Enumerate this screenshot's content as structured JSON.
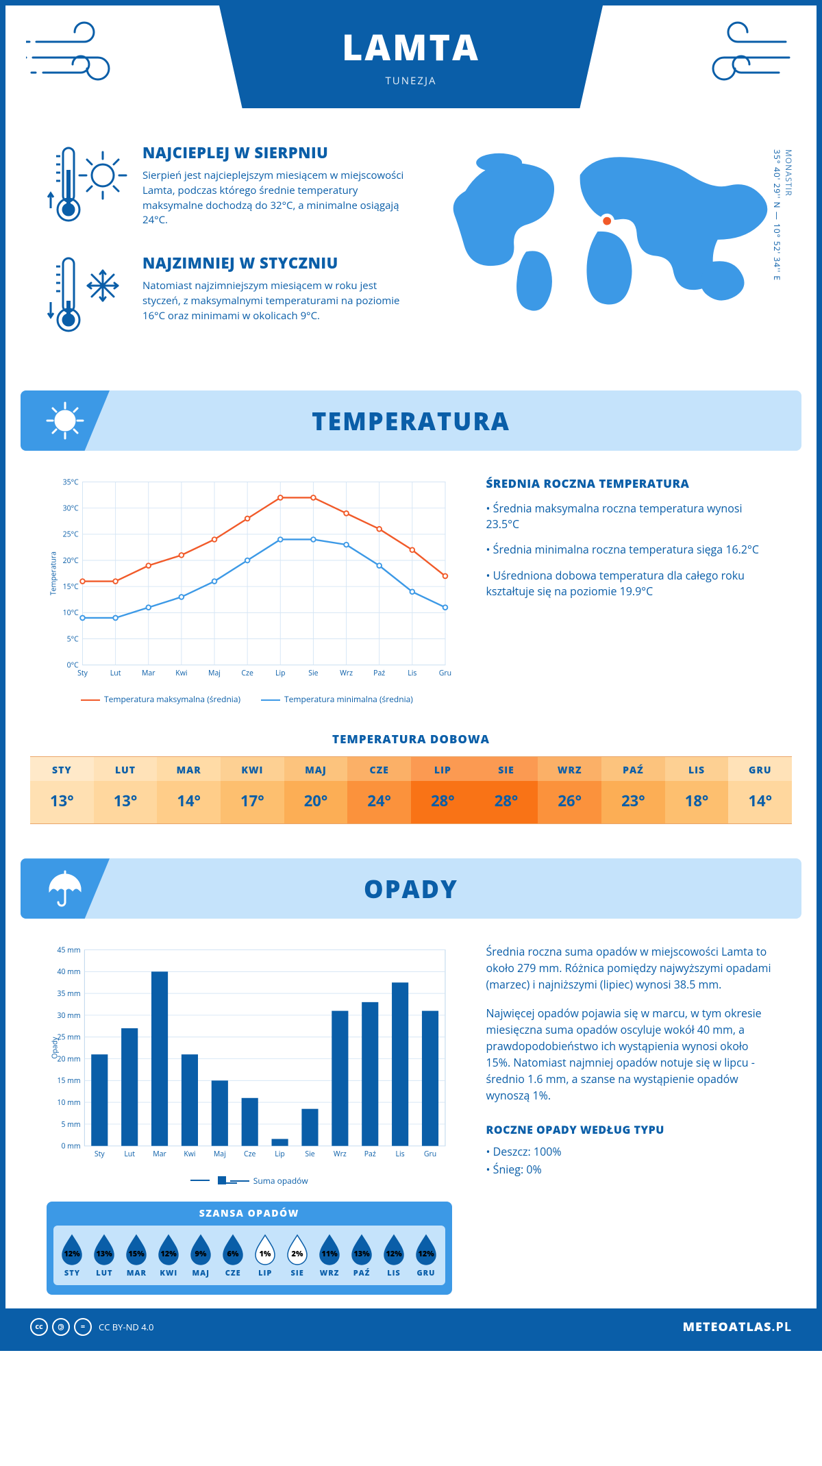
{
  "header": {
    "city": "LAMTA",
    "country": "TUNEZJA"
  },
  "coords": {
    "region": "MONASTIR",
    "lat": "35° 40' 29'' N",
    "lon": "10° 52' 34'' E"
  },
  "facts": {
    "hot": {
      "title": "NAJCIEPLEJ W SIERPNIU",
      "text": "Sierpień jest najcieplejszym miesiącem w miejscowości Lamta, podczas którego średnie temperatury maksymalne dochodzą do 32°C, a minimalne osiągają 24°C."
    },
    "cold": {
      "title": "NAJZIMNIEJ W STYCZNIU",
      "text": "Natomiast najzimniejszym miesiącem w roku jest styczeń, z maksymalnymi temperaturami na poziomie 16°C oraz minimami w okolicach 9°C."
    }
  },
  "sections": {
    "temperature": "TEMPERATURA",
    "daily": "TEMPERATURA DOBOWA",
    "precip": "OPADY",
    "chance": "SZANSA OPADÓW"
  },
  "months_short": [
    "STY",
    "LUT",
    "MAR",
    "KWI",
    "MAJ",
    "CZE",
    "LIP",
    "SIE",
    "WRZ",
    "PAŹ",
    "LIS",
    "GRU"
  ],
  "months_chart": [
    "Sty",
    "Lut",
    "Mar",
    "Kwi",
    "Maj",
    "Cze",
    "Lip",
    "Sie",
    "Wrz",
    "Paź",
    "Lis",
    "Gru"
  ],
  "temperature_chart": {
    "type": "line",
    "y_label": "Temperatura",
    "y_min": 0,
    "y_max": 35,
    "y_step": 5,
    "series": {
      "max": {
        "label": "Temperatura maksymalna (średnia)",
        "color": "#f15a29",
        "values": [
          16,
          16,
          19,
          21,
          24,
          28,
          32,
          32,
          29,
          26,
          22,
          17
        ]
      },
      "min": {
        "label": "Temperatura minimalna (średnia)",
        "color": "#3c99e6",
        "values": [
          9,
          9,
          11,
          13,
          16,
          20,
          24,
          24,
          23,
          19,
          14,
          11
        ]
      }
    },
    "grid_color": "#d6e6f5",
    "background": "#ffffff"
  },
  "temperature_text": {
    "heading": "ŚREDNIA ROCZNA TEMPERATURA",
    "bullets": [
      "Średnia maksymalna roczna temperatura wynosi 23.5°C",
      "Średnia minimalna roczna temperatura sięga 16.2°C",
      "Uśredniona dobowa temperatura dla całego roku kształtuje się na poziomie 19.9°C"
    ]
  },
  "daily_temp": {
    "values": [
      13,
      13,
      14,
      17,
      20,
      24,
      28,
      28,
      26,
      23,
      18,
      14
    ],
    "heat_colors": [
      "#ffe0b2",
      "#ffd79e",
      "#ffcd89",
      "#fdbf6f",
      "#fcae55",
      "#fb923c",
      "#f97316",
      "#f97316",
      "#fb923c",
      "#fcae55",
      "#fdbf6f",
      "#ffd79e"
    ],
    "header_colors": [
      "#ffe9c9",
      "#ffe2b8",
      "#ffdba6",
      "#fdd093",
      "#fcc37d",
      "#fbb067",
      "#fb9a52",
      "#fb9a52",
      "#fbb067",
      "#fcc37d",
      "#fdd093",
      "#ffe2b8"
    ]
  },
  "precip_chart": {
    "type": "bar",
    "y_label": "Opady",
    "legend": "Suma opadów",
    "y_min": 0,
    "y_max": 45,
    "y_step": 5,
    "bar_color": "#0a5ea8",
    "grid_color": "#d6e6f5",
    "values": [
      21,
      27,
      40,
      21,
      15,
      11,
      1.6,
      8.5,
      31,
      33,
      37.5,
      31
    ]
  },
  "precip_text": {
    "p1": "Średnia roczna suma opadów w miejscowości Lamta to około 279 mm. Różnica pomiędzy najwyższymi opadami (marzec) i najniższymi (lipiec) wynosi 38.5 mm.",
    "p2": "Najwięcej opadów pojawia się w marcu, w tym okresie miesięczna suma opadów oscyluje wokół 40 mm, a prawdopodobieństwo ich wystąpienia wynosi około 15%. Natomiast najmniej opadów notuje się w lipcu - średnio 1.6 mm, a szanse na wystąpienie opadów wynoszą 1%.",
    "type_heading": "ROCZNE OPADY WEDŁUG TYPU",
    "types": [
      "Deszcz: 100%",
      "Śnieg: 0%"
    ]
  },
  "chance": {
    "values": [
      12,
      13,
      15,
      12,
      9,
      6,
      1,
      2,
      11,
      13,
      12,
      12
    ],
    "fill_color": "#0a5ea8",
    "empty_color": "#ffffff",
    "low_threshold": 3
  },
  "map": {
    "marker_color_outer": "#ffffff",
    "marker_color_inner": "#f15a29",
    "land_color": "#3c99e6",
    "marker_cx_pct": 50,
    "marker_cy_pct": 44
  },
  "footer": {
    "license": "CC BY-ND 4.0",
    "site_bold": "METEOATLAS",
    "site_rest": ".PL"
  },
  "colors": {
    "primary": "#0a5ea8",
    "light": "#c5e3fb",
    "mid": "#3c99e6",
    "accent": "#f15a29"
  }
}
